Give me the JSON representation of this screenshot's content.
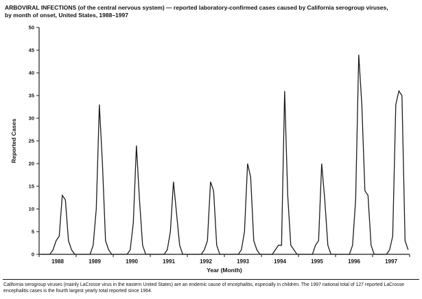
{
  "figure": {
    "footnote": "California serogroup viruses (mainly LaCrosse virus in the eastern United States) are an endemic cause of encephalitis, especially in children. The 1997 national total of 127 reported LaCrosse encephalitis cases is the fourth largest yearly total reported since 1964."
  },
  "chart_data": {
    "type": "line",
    "title": "ARBOVIRAL INFECTIONS (of the central nervous system) — reported laboratory-confirmed cases caused by California serogroup viruses, by month of onset, United States, 1988–1997",
    "xlabel": "Year (Month)",
    "ylabel": "Reported Cases",
    "ylim": [
      0,
      50
    ],
    "ytick_step": 5,
    "x_unit": "month of onset",
    "years": [
      "1988",
      "1989",
      "1990",
      "1991",
      "1992",
      "1993",
      "1994",
      "1995",
      "1996",
      "1997"
    ],
    "monthly_values_by_year": {
      "1988": [
        0,
        0,
        0,
        0,
        1,
        3,
        4,
        13,
        12,
        3,
        1,
        0
      ],
      "1989": [
        0,
        0,
        0,
        0,
        0,
        2,
        10,
        33,
        20,
        3,
        1,
        0
      ],
      "1990": [
        0,
        0,
        0,
        0,
        0,
        1,
        7,
        24,
        12,
        2,
        0,
        0
      ],
      "1991": [
        0,
        0,
        0,
        0,
        0,
        1,
        5,
        16,
        9,
        2,
        0,
        0
      ],
      "1992": [
        0,
        0,
        0,
        0,
        0,
        1,
        3,
        16,
        14,
        2,
        0,
        0
      ],
      "1993": [
        0,
        0,
        0,
        0,
        0,
        1,
        5,
        20,
        17,
        3,
        1,
        0
      ],
      "1994": [
        0,
        0,
        0,
        0,
        1,
        2,
        2,
        36,
        13,
        2,
        1,
        0
      ],
      "1995": [
        0,
        0,
        0,
        0,
        0,
        2,
        3,
        20,
        12,
        2,
        0,
        0
      ],
      "1996": [
        0,
        0,
        0,
        0,
        0,
        2,
        12,
        44,
        33,
        14,
        13,
        2
      ],
      "1997": [
        0,
        0,
        0,
        0,
        0,
        1,
        4,
        33,
        36,
        35,
        3,
        1
      ]
    },
    "peak_cases_by_year": {
      "1988": 13,
      "1989": 33,
      "1990": 24,
      "1991": 16,
      "1992": 16,
      "1993": 20,
      "1994": 36,
      "1995": 20,
      "1996": 44,
      "1997": 36
    },
    "grid": false,
    "legend": "none",
    "line_color": "#1a1a1a",
    "axis_color": "#1a1a1a"
  }
}
